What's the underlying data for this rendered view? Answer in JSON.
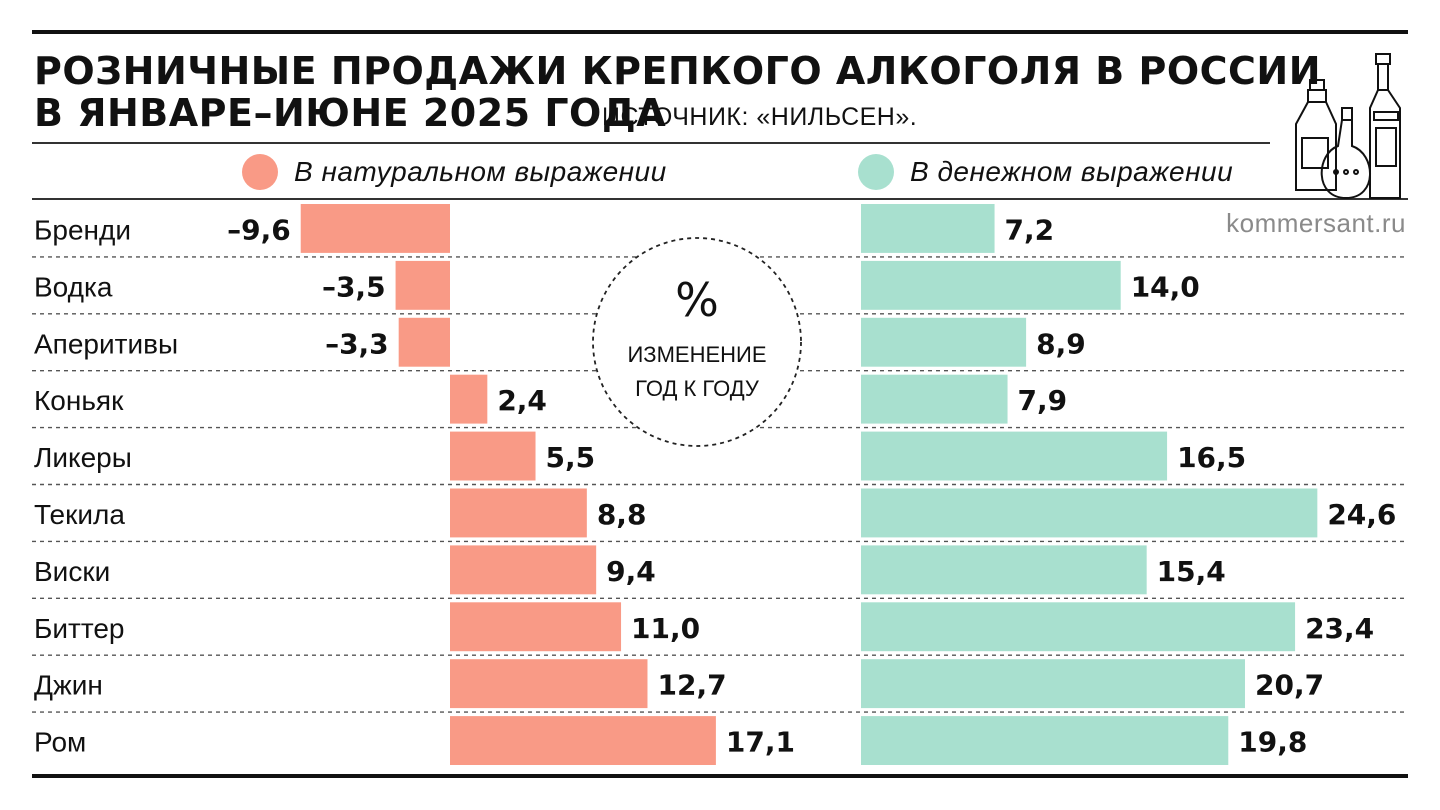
{
  "title_line1": "РОЗНИЧНЫЕ ПРОДАЖИ КРЕПКОГО АЛКОГОЛЯ В РОССИИ",
  "title_line2": "В ЯНВАРЕ–ИЮНЕ 2025 ГОДА",
  "source": "ИСТОЧНИК: «НИЛЬСЕН».",
  "watermark": "kommersant.ru",
  "center_badge": {
    "symbol": "%",
    "line1": "ИЗМЕНЕНИЕ",
    "line2": "ГОД К ГОДУ"
  },
  "colors": {
    "volume": "#f99a86",
    "value": "#a8e0cf",
    "text": "#111111"
  },
  "chart_data": {
    "type": "bar",
    "title": "РОЗНИЧНЫЕ ПРОДАЖИ КРЕПКОГО АЛКОГОЛЯ В РОССИИ В ЯНВАРЕ–ИЮНЕ 2025 ГОДА",
    "unit": "%",
    "categories": [
      "Бренди",
      "Водка",
      "Аперитивы",
      "Коньяк",
      "Ликеры",
      "Текила",
      "Виски",
      "Биттер",
      "Джин",
      "Ром"
    ],
    "series": [
      {
        "name": "В натуральном выражении",
        "values": [
          -9.6,
          -3.5,
          -3.3,
          2.4,
          5.5,
          8.8,
          9.4,
          11.0,
          12.7,
          17.1
        ],
        "labels": [
          "–9,6",
          "–3,5",
          "–3,3",
          "2,4",
          "5,5",
          "8,8",
          "9,4",
          "11,0",
          "12,7",
          "17,1"
        ]
      },
      {
        "name": "В денежном выражении",
        "values": [
          7.2,
          14.0,
          8.9,
          7.9,
          16.5,
          24.6,
          15.4,
          23.4,
          20.7,
          19.8
        ],
        "labels": [
          "7,2",
          "14,0",
          "8,9",
          "7,9",
          "16,5",
          "24,6",
          "15,4",
          "23,4",
          "20,7",
          "19,8"
        ]
      }
    ]
  }
}
